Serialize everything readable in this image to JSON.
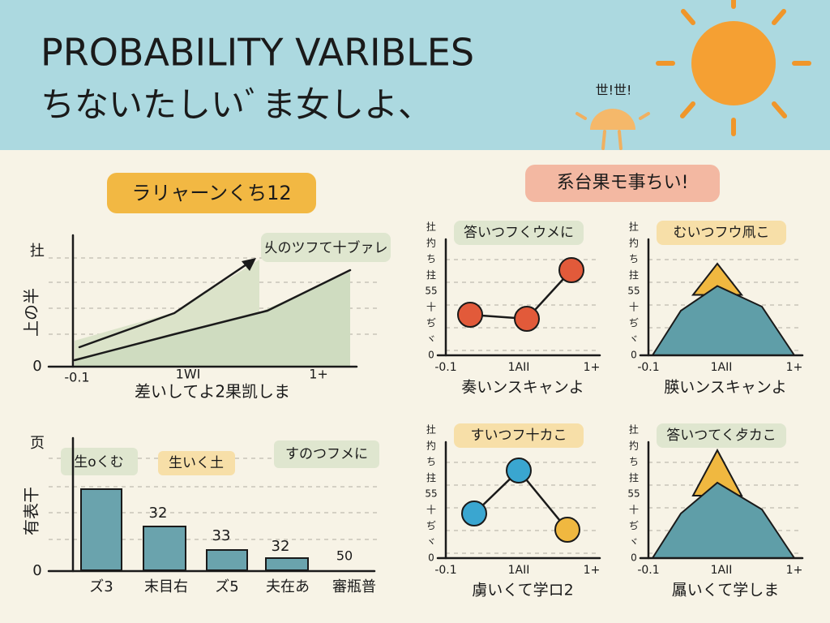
{
  "header": {
    "title": "PROBABILITY VARIBLES",
    "subtitle": "ちないたしいﾞま女しよ、",
    "sun_note": "世!世!"
  },
  "left": {
    "label": "ラリャーンくち12",
    "line_chart": {
      "y_top": "扗",
      "y_zero": "0",
      "y_label": "上の半",
      "x_ticks": [
        "-0.1",
        "1WI",
        "1+"
      ],
      "x_label": "差いしてよ2果凯しま",
      "annotation": "乆のツフて十ブァレ"
    },
    "bar_chart": {
      "y_top": "页",
      "y_zero": "0",
      "y_label": "有表干",
      "tags": [
        "生oくむ",
        "生いく土",
        "すのつフメに"
      ],
      "value_labels": [
        "32",
        "33",
        "32",
        "50"
      ],
      "categories": [
        "ズ3",
        "末目右",
        "ズ5",
        "夫在あ",
        "審瓶普"
      ]
    }
  },
  "right": {
    "label": "系台果モ事ちい!",
    "panels": [
      {
        "title": "答いつフくウメに",
        "y_ticks": [
          "扗",
          "扚",
          "ち",
          "拄",
          "55",
          "十",
          "ぢ",
          "ヾ",
          "0"
        ],
        "x_ticks": [
          "-0.1",
          "1AII",
          "1+"
        ],
        "x_label": "奏いンスキャンよ"
      },
      {
        "title": "むいつフウ凧こ",
        "y_ticks": [
          "扗",
          "扚",
          "ち",
          "拄",
          "55",
          "十",
          "ぢ",
          "ヾ",
          "0"
        ],
        "x_ticks": [
          "-0.1",
          "1AII",
          "1+"
        ],
        "x_label": "朠いンスキャンよ"
      },
      {
        "title": "すいつフ十カこ",
        "y_ticks": [
          "扗",
          "扚",
          "ち",
          "拄",
          "55",
          "十",
          "ぢ",
          "ヾ",
          "0"
        ],
        "x_ticks": [
          "-0.1",
          "1AII",
          "1+"
        ],
        "x_label": "虜いくて学ロ2"
      },
      {
        "title": "答いつてく歺カこ",
        "y_ticks": [
          "扗",
          "扚",
          "ち",
          "拄",
          "55",
          "十",
          "ぢ",
          "ヾ",
          "0"
        ],
        "x_ticks": [
          "-0.1",
          "1AII",
          "1+"
        ],
        "x_label": "屭いくて学しま"
      }
    ]
  }
}
